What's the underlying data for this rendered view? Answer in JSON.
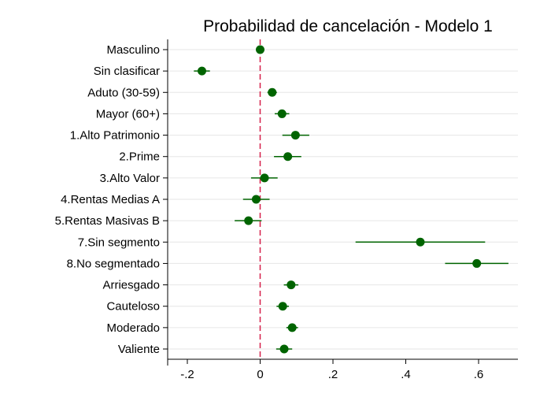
{
  "chart_data": {
    "type": "scatter",
    "subtype": "coefficient-plot",
    "title": "Probabilidad de cancelación - Modelo 1",
    "xlabel": "",
    "ylabel": "",
    "xlim": [
      -0.2,
      0.7
    ],
    "xticks": [
      -0.2,
      0,
      0.2,
      0.4,
      0.6
    ],
    "xtick_labels": [
      "-.2",
      "0",
      ".2",
      ".4",
      ".6"
    ],
    "reference_line": {
      "x": 0,
      "color": "#d6204a",
      "style": "dashed"
    },
    "grid": true,
    "marker_color": "#006400",
    "series": [
      {
        "categories": [
          "Masculino",
          "Sin clasificar",
          "Aduto (30-59)",
          "Mayor (60+)",
          "1.Alto Patrimonio",
          "2.Prime",
          "3.Alto Valor",
          "4.Rentas Medias A",
          "5.Rentas Masivas B",
          "7.Sin segmento",
          "8.No segmentado",
          "Arriesgado",
          "Cauteloso",
          "Moderado",
          "Valiente"
        ],
        "values": [
          0.0,
          -0.16,
          0.033,
          0.06,
          0.097,
          0.076,
          0.012,
          -0.011,
          -0.032,
          0.44,
          0.595,
          0.085,
          0.062,
          0.088,
          0.066
        ],
        "ci_low": [
          -0.004,
          -0.182,
          0.02,
          0.04,
          0.061,
          0.038,
          -0.025,
          -0.047,
          -0.07,
          0.262,
          0.508,
          0.065,
          0.045,
          0.072,
          0.044
        ],
        "ci_high": [
          0.004,
          -0.138,
          0.046,
          0.08,
          0.135,
          0.113,
          0.048,
          0.026,
          0.004,
          0.618,
          0.682,
          0.105,
          0.079,
          0.104,
          0.088
        ]
      }
    ]
  }
}
